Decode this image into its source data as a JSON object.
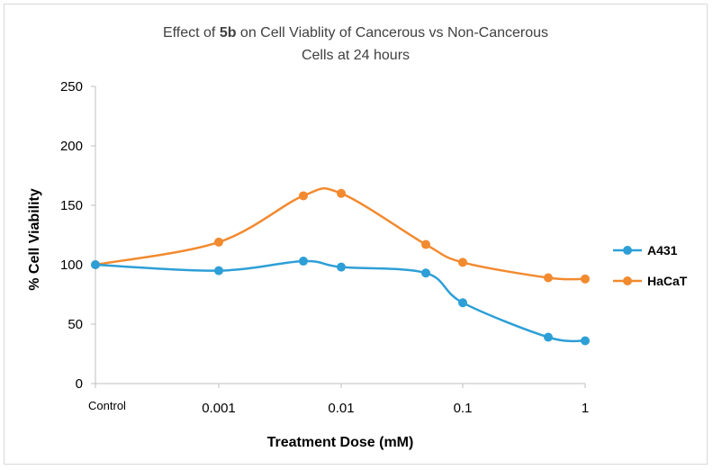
{
  "chart_data": {
    "type": "line",
    "title_line1_pre": "Effect of ",
    "title_bold": "5b",
    "title_line1_post": " on Cell Viablity of Cancerous vs Non-Cancerous",
    "title_line2": "Cells at 24 hours",
    "xlabel": "Treatment Dose (mM)",
    "ylabel": "% Cell Viability",
    "categories": [
      "Control",
      "0.001",
      "0.005",
      "0.01",
      "0.05",
      "0.1",
      "0.5",
      "1"
    ],
    "x_tick_labels": [
      "Control",
      "0.001",
      "0.01",
      "0.1",
      "1"
    ],
    "ylim": [
      0,
      250
    ],
    "y_ticks": [
      "0",
      "50",
      "100",
      "150",
      "200",
      "250"
    ],
    "grid": false,
    "legend": "right",
    "series": [
      {
        "name": "A431",
        "color": "#2e9fd6",
        "values": [
          100,
          95,
          103,
          98,
          93,
          68,
          39,
          36
        ]
      },
      {
        "name": "HaCaT",
        "color": "#f28a2f",
        "values": [
          100,
          119,
          158,
          160,
          117,
          102,
          89,
          88
        ]
      }
    ]
  }
}
